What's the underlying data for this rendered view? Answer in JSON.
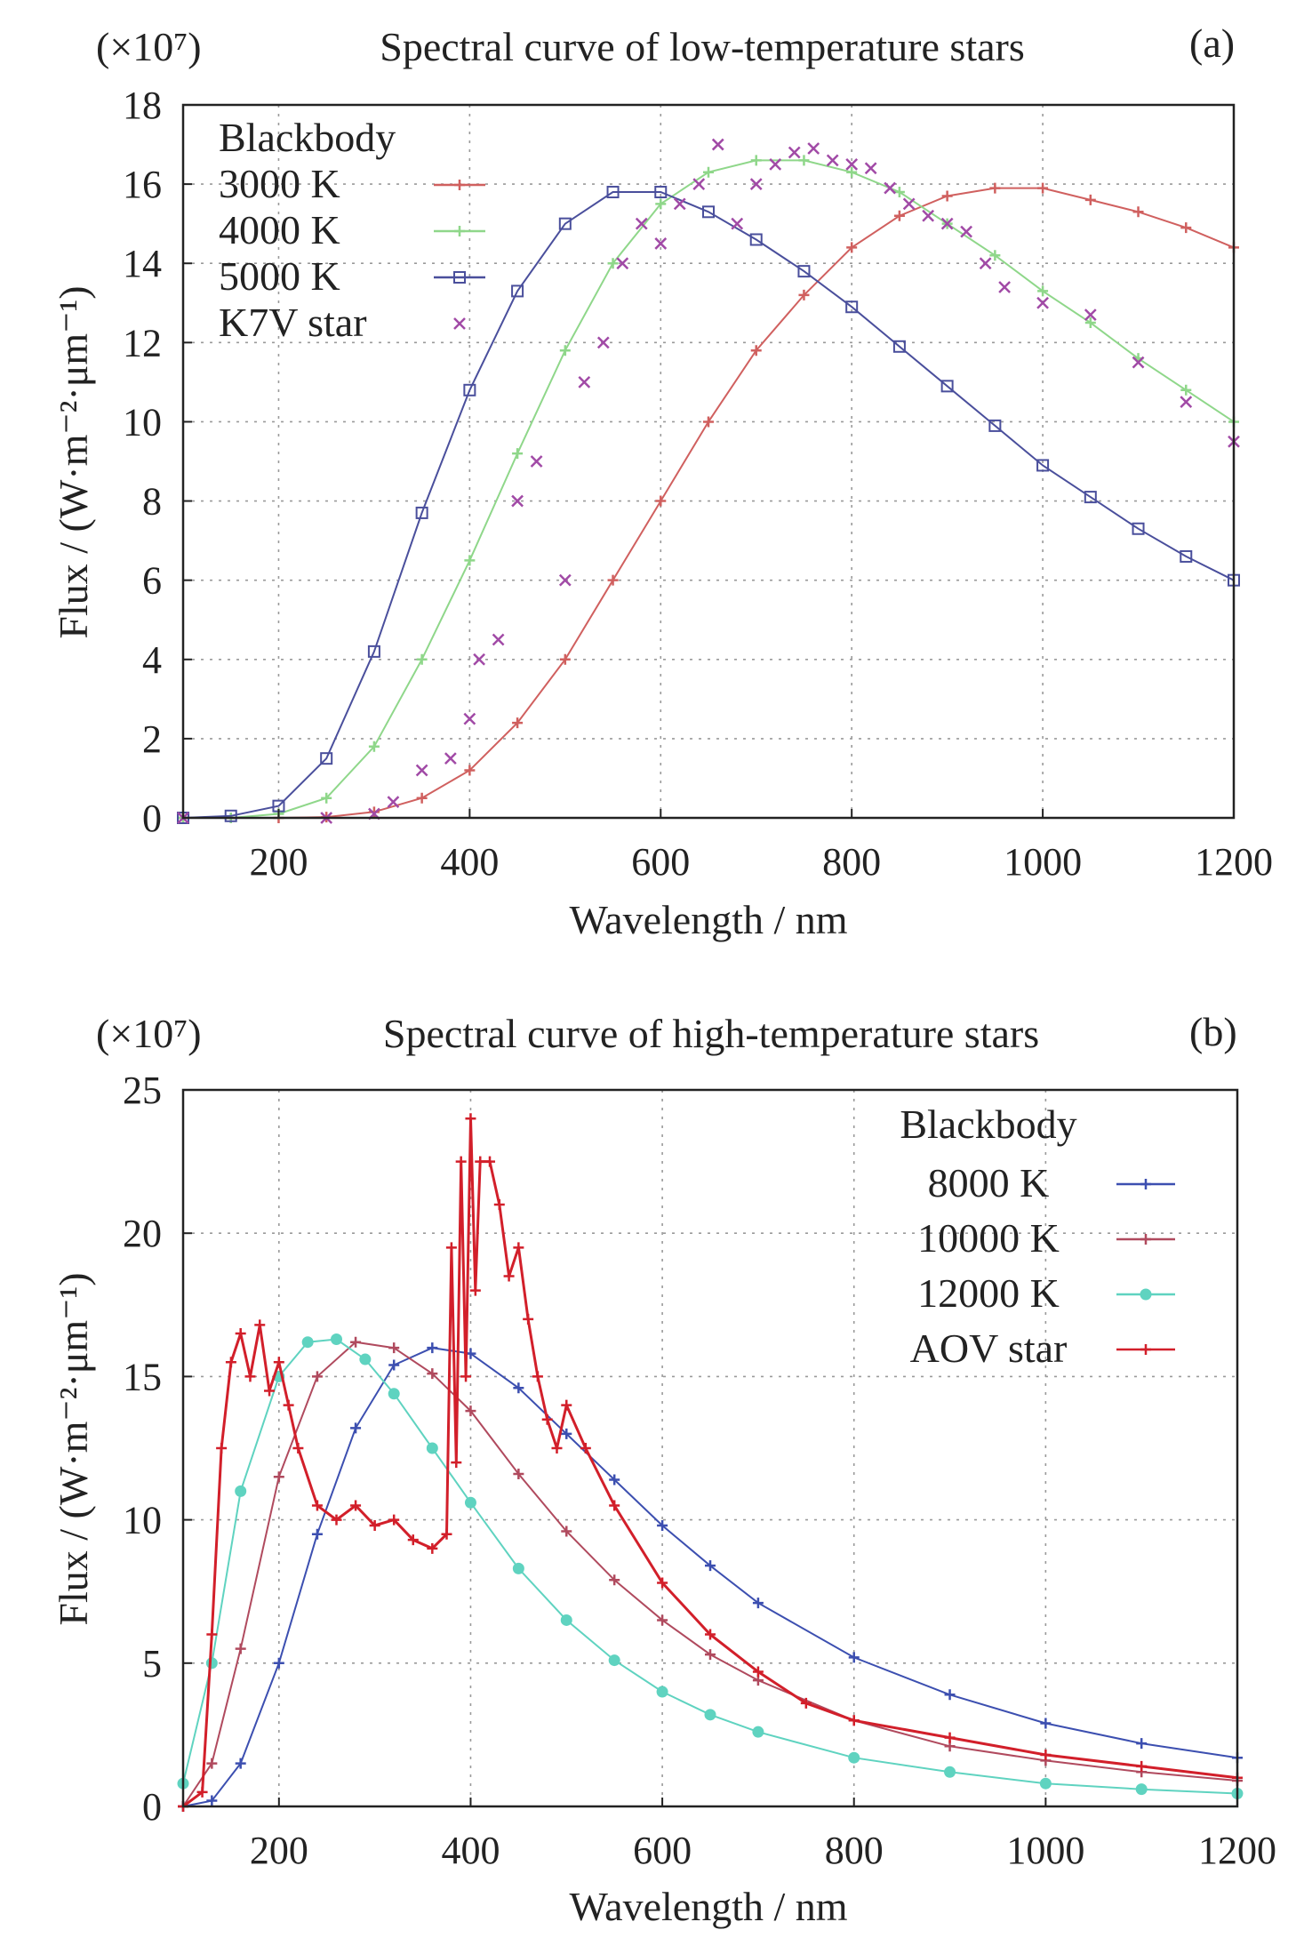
{
  "chart_data": [
    {
      "type": "line",
      "panel_label": "(a)",
      "scale_label": "(×10⁷)",
      "title": "Spectral curve of low-temperature stars",
      "xlabel": "Wavelength / nm",
      "ylabel": "Flux / (W·m⁻²·μm⁻¹)",
      "xlim": [
        100,
        1200
      ],
      "ylim": [
        0,
        18
      ],
      "xticks": [
        200,
        400,
        600,
        800,
        1000,
        1200
      ],
      "yticks": [
        0,
        2,
        4,
        6,
        8,
        10,
        12,
        14,
        16,
        18
      ],
      "grid": true,
      "legend_title": "Blackbody",
      "legend_position": "top-left",
      "series": [
        {
          "name": "3000 K",
          "color": "#d0605f",
          "marker": "plus",
          "x": [
            100,
            150,
            200,
            250,
            300,
            350,
            400,
            450,
            500,
            550,
            600,
            650,
            700,
            750,
            800,
            850,
            900,
            950,
            1000,
            1050,
            1100,
            1150,
            1200
          ],
          "y": [
            0,
            0,
            0,
            0.02,
            0.15,
            0.5,
            1.2,
            2.4,
            4.0,
            6.0,
            8.0,
            10.0,
            11.8,
            13.2,
            14.4,
            15.2,
            15.7,
            15.9,
            15.9,
            15.6,
            15.3,
            14.9,
            14.4
          ]
        },
        {
          "name": "4000 K",
          "color": "#8fd78a",
          "marker": "plus",
          "x": [
            100,
            150,
            200,
            250,
            300,
            350,
            400,
            450,
            500,
            550,
            600,
            650,
            700,
            750,
            800,
            850,
            900,
            950,
            1000,
            1050,
            1100,
            1150,
            1200
          ],
          "y": [
            0,
            0,
            0.1,
            0.5,
            1.8,
            4.0,
            6.5,
            9.2,
            11.8,
            14.0,
            15.5,
            16.3,
            16.6,
            16.6,
            16.3,
            15.8,
            15.0,
            14.2,
            13.3,
            12.5,
            11.6,
            10.8,
            10.0
          ]
        },
        {
          "name": "5000 K",
          "color": "#4a4f9c",
          "marker": "square",
          "x": [
            100,
            150,
            200,
            250,
            300,
            350,
            400,
            450,
            500,
            550,
            600,
            650,
            700,
            750,
            800,
            850,
            900,
            950,
            1000,
            1050,
            1100,
            1150,
            1200
          ],
          "y": [
            0,
            0.05,
            0.3,
            1.5,
            4.2,
            7.7,
            10.8,
            13.3,
            15.0,
            15.8,
            15.8,
            15.3,
            14.6,
            13.8,
            12.9,
            11.9,
            10.9,
            9.9,
            8.9,
            8.1,
            7.3,
            6.6,
            6.0
          ]
        },
        {
          "name": "K7V star",
          "color": "#a14aa6",
          "marker": "x",
          "x": [
            100,
            250,
            300,
            320,
            350,
            380,
            400,
            410,
            430,
            450,
            470,
            500,
            520,
            540,
            560,
            580,
            600,
            620,
            640,
            660,
            680,
            700,
            720,
            740,
            760,
            780,
            800,
            820,
            840,
            860,
            880,
            900,
            920,
            940,
            960,
            1000,
            1050,
            1100,
            1150,
            1200
          ],
          "y": [
            0,
            0,
            0.1,
            0.4,
            1.2,
            1.5,
            2.5,
            4.0,
            4.5,
            8.0,
            9.0,
            6.0,
            11.0,
            12.0,
            14.0,
            15.0,
            14.5,
            15.5,
            16.0,
            17.0,
            15.0,
            16.0,
            16.5,
            16.8,
            16.9,
            16.6,
            16.5,
            16.4,
            15.9,
            15.5,
            15.2,
            15.0,
            14.8,
            14.0,
            13.4,
            13.0,
            12.7,
            11.5,
            10.5,
            9.5
          ]
        }
      ]
    },
    {
      "type": "line",
      "panel_label": "(b)",
      "scale_label": "(×10⁷)",
      "title": "Spectral curve of high-temperature stars",
      "xlabel": "Wavelength / nm",
      "ylabel": "Flux / (W·m⁻²·μm⁻¹)",
      "xlim": [
        100,
        1200
      ],
      "ylim": [
        0,
        25
      ],
      "xticks": [
        200,
        400,
        600,
        800,
        1000,
        1200
      ],
      "yticks": [
        0,
        5,
        10,
        15,
        20,
        25
      ],
      "grid": true,
      "legend_title": "Blackbody",
      "legend_position": "top-right",
      "series": [
        {
          "name": "8000 K",
          "color": "#3c4fb0",
          "marker": "plus",
          "x": [
            100,
            130,
            160,
            200,
            240,
            280,
            320,
            360,
            400,
            450,
            500,
            550,
            600,
            650,
            700,
            800,
            900,
            1000,
            1100,
            1200
          ],
          "y": [
            0,
            0.2,
            1.5,
            5.0,
            9.5,
            13.2,
            15.4,
            16.0,
            15.8,
            14.6,
            13.0,
            11.4,
            9.8,
            8.4,
            7.1,
            5.2,
            3.9,
            2.9,
            2.2,
            1.7
          ]
        },
        {
          "name": "10000 K",
          "color": "#b04a5e",
          "marker": "plus",
          "x": [
            100,
            130,
            160,
            200,
            240,
            280,
            320,
            360,
            400,
            450,
            500,
            550,
            600,
            650,
            700,
            800,
            900,
            1000,
            1100,
            1200
          ],
          "y": [
            0,
            1.5,
            5.5,
            11.5,
            15.0,
            16.2,
            16.0,
            15.1,
            13.8,
            11.6,
            9.6,
            7.9,
            6.5,
            5.3,
            4.4,
            3.0,
            2.1,
            1.6,
            1.2,
            0.9
          ]
        },
        {
          "name": "12000 K",
          "color": "#5fd3c0",
          "marker": "circle",
          "x": [
            100,
            130,
            160,
            200,
            230,
            260,
            290,
            320,
            360,
            400,
            450,
            500,
            550,
            600,
            650,
            700,
            800,
            900,
            1000,
            1100,
            1200
          ],
          "y": [
            0.8,
            5.0,
            11.0,
            15.0,
            16.2,
            16.3,
            15.6,
            14.4,
            12.5,
            10.6,
            8.3,
            6.5,
            5.1,
            4.0,
            3.2,
            2.6,
            1.7,
            1.2,
            0.8,
            0.6,
            0.45
          ]
        },
        {
          "name": "AOV star",
          "color": "#d21f2a",
          "marker": "plus",
          "x": [
            100,
            120,
            130,
            140,
            150,
            160,
            170,
            180,
            190,
            200,
            210,
            220,
            240,
            260,
            280,
            300,
            320,
            340,
            360,
            375,
            380,
            385,
            390,
            395,
            400,
            405,
            410,
            420,
            430,
            440,
            450,
            460,
            470,
            480,
            490,
            500,
            520,
            550,
            600,
            650,
            700,
            750,
            800,
            900,
            1000,
            1100,
            1200
          ],
          "y": [
            0,
            0.5,
            6.0,
            12.5,
            15.5,
            16.5,
            15.0,
            16.8,
            14.5,
            15.5,
            14.0,
            12.5,
            10.5,
            10.0,
            10.5,
            9.8,
            10.0,
            9.3,
            9.0,
            9.5,
            19.5,
            12.0,
            22.5,
            15.0,
            24.0,
            18.0,
            22.5,
            22.5,
            21.0,
            18.5,
            19.5,
            17.0,
            15.0,
            13.5,
            12.5,
            14.0,
            12.5,
            10.5,
            7.8,
            6.0,
            4.7,
            3.6,
            3.0,
            2.4,
            1.8,
            1.4,
            1.0
          ]
        }
      ]
    }
  ]
}
